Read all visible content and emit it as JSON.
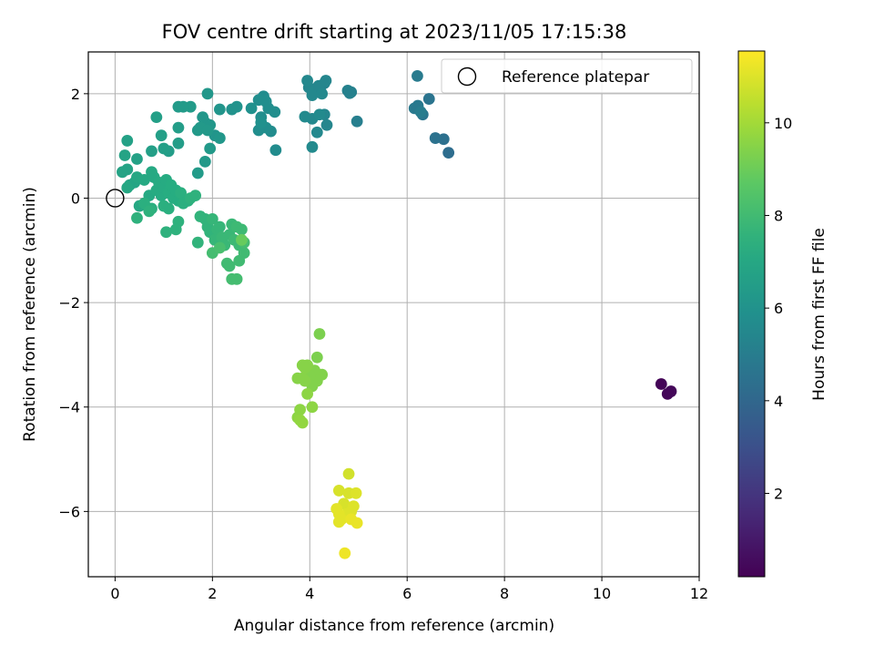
{
  "chart_data": {
    "type": "scatter",
    "title": "FOV centre drift starting at 2023/11/05 17:15:38",
    "xlabel": "Angular distance from reference (arcmin)",
    "ylabel": "Rotation from reference (arcmin)",
    "xlim": [
      -0.55,
      12
    ],
    "ylim": [
      -7.25,
      2.8
    ],
    "xticks": [
      0,
      2,
      4,
      6,
      8,
      10,
      12
    ],
    "yticks": [
      -6,
      -4,
      -2,
      0,
      2
    ],
    "grid": true,
    "legend": {
      "position": "top-right",
      "entries": [
        "Reference platepar"
      ]
    },
    "reference_point": {
      "x": 0,
      "y": 0,
      "label": "Reference platepar"
    },
    "colorbar": {
      "label": "Hours from first FF file",
      "colormap": "viridis",
      "range": [
        0.2,
        11.55
      ],
      "ticks": [
        2,
        4,
        6,
        8,
        10
      ]
    },
    "points": [
      [
        11.22,
        -3.56,
        0.3
      ],
      [
        11.35,
        -3.75,
        0.35
      ],
      [
        11.42,
        -3.7,
        0.4
      ],
      [
        6.85,
        0.87,
        4.3
      ],
      [
        6.75,
        1.13,
        4.4
      ],
      [
        6.58,
        1.15,
        4.5
      ],
      [
        6.45,
        1.9,
        4.6
      ],
      [
        6.32,
        1.6,
        4.7
      ],
      [
        6.22,
        1.77,
        4.8
      ],
      [
        6.15,
        1.72,
        4.8
      ],
      [
        6.21,
        2.34,
        4.9
      ],
      [
        6.28,
        1.65,
        5.0
      ],
      [
        4.97,
        1.47,
        5.1
      ],
      [
        4.82,
        2.01,
        5.2
      ],
      [
        4.78,
        2.06,
        5.2
      ],
      [
        4.85,
        2.03,
        5.2
      ],
      [
        4.35,
        1.4,
        5.4
      ],
      [
        4.3,
        1.6,
        5.4
      ],
      [
        4.15,
        1.26,
        5.5
      ],
      [
        4.05,
        1.52,
        5.5
      ],
      [
        3.98,
        2.12,
        5.4
      ],
      [
        4.1,
        2.05,
        5.5
      ],
      [
        4.22,
        2.05,
        5.3
      ],
      [
        4.3,
        2.2,
        5.3
      ],
      [
        3.95,
        2.25,
        5.5
      ],
      [
        4.18,
        2.15,
        5.4
      ],
      [
        4.05,
        1.97,
        5.5
      ],
      [
        3.9,
        1.56,
        5.6
      ],
      [
        4.05,
        0.98,
        5.6
      ],
      [
        4.2,
        1.6,
        5.6
      ],
      [
        4.25,
        2.0,
        5.5
      ],
      [
        4.33,
        2.25,
        5.4
      ],
      [
        3.3,
        0.92,
        5.7
      ],
      [
        3.2,
        1.28,
        5.7
      ],
      [
        3.1,
        1.35,
        5.8
      ],
      [
        3.0,
        1.55,
        5.8
      ],
      [
        2.95,
        1.3,
        5.8
      ],
      [
        3.15,
        1.72,
        5.8
      ],
      [
        3.28,
        1.65,
        5.8
      ],
      [
        3.05,
        1.95,
        5.7
      ],
      [
        2.95,
        1.88,
        5.8
      ],
      [
        2.8,
        1.72,
        5.9
      ],
      [
        3.1,
        1.85,
        5.8
      ],
      [
        3.0,
        1.45,
        5.9
      ],
      [
        2.5,
        1.75,
        6.0
      ],
      [
        2.4,
        1.7,
        6.0
      ],
      [
        2.15,
        1.7,
        6.1
      ],
      [
        2.05,
        1.2,
        6.1
      ],
      [
        2.15,
        1.15,
        6.2
      ],
      [
        1.95,
        1.4,
        6.2
      ],
      [
        1.85,
        1.45,
        6.2
      ],
      [
        1.9,
        2.0,
        6.2
      ],
      [
        1.8,
        1.55,
        6.2
      ],
      [
        1.7,
        1.3,
        6.3
      ],
      [
        1.75,
        1.35,
        6.3
      ],
      [
        1.9,
        1.3,
        6.3
      ],
      [
        1.95,
        0.95,
        6.3
      ],
      [
        1.85,
        0.7,
        6.3
      ],
      [
        1.7,
        0.48,
        6.4
      ],
      [
        1.55,
        1.75,
        6.4
      ],
      [
        1.4,
        1.75,
        6.4
      ],
      [
        1.3,
        1.75,
        6.4
      ],
      [
        1.3,
        1.35,
        6.5
      ],
      [
        1.3,
        1.05,
        6.5
      ],
      [
        1.1,
        0.9,
        6.5
      ],
      [
        1.0,
        0.95,
        6.6
      ],
      [
        0.95,
        1.2,
        6.6
      ],
      [
        0.85,
        1.55,
        6.6
      ],
      [
        0.75,
        0.9,
        6.6
      ],
      [
        0.45,
        0.75,
        6.7
      ],
      [
        0.25,
        1.1,
        6.7
      ],
      [
        0.2,
        0.82,
        6.8
      ],
      [
        0.25,
        0.55,
        6.8
      ],
      [
        0.15,
        0.5,
        6.8
      ],
      [
        0.3,
        0.25,
        6.9
      ],
      [
        0.4,
        0.3,
        6.9
      ],
      [
        0.25,
        0.2,
        7.0
      ],
      [
        0.45,
        0.4,
        7.0
      ],
      [
        0.5,
        -0.15,
        7.0
      ],
      [
        0.6,
        0.35,
        7.1
      ],
      [
        0.75,
        0.5,
        7.1
      ],
      [
        0.7,
        0.05,
        7.1
      ],
      [
        0.8,
        0.4,
        7.1
      ],
      [
        0.85,
        0.15,
        7.2
      ],
      [
        0.9,
        0.3,
        7.2
      ],
      [
        0.95,
        0.05,
        7.2
      ],
      [
        1.0,
        0.2,
        7.2
      ],
      [
        1.05,
        0.35,
        7.2
      ],
      [
        1.1,
        0.1,
        7.3
      ],
      [
        1.15,
        0.25,
        7.3
      ],
      [
        1.2,
        0.0,
        7.3
      ],
      [
        1.25,
        0.15,
        7.3
      ],
      [
        1.3,
        -0.05,
        7.3
      ],
      [
        1.35,
        0.1,
        7.4
      ],
      [
        1.4,
        -0.1,
        7.4
      ],
      [
        1.5,
        -0.05,
        7.4
      ],
      [
        1.0,
        -0.15,
        7.4
      ],
      [
        1.1,
        -0.2,
        7.4
      ],
      [
        0.75,
        -0.2,
        7.4
      ],
      [
        0.6,
        -0.1,
        7.4
      ],
      [
        0.45,
        -0.38,
        7.5
      ],
      [
        0.7,
        -0.25,
        7.5
      ],
      [
        1.3,
        -0.45,
        7.5
      ],
      [
        1.25,
        -0.6,
        7.5
      ],
      [
        1.05,
        -0.65,
        7.5
      ],
      [
        1.55,
        0.0,
        7.5
      ],
      [
        1.65,
        0.05,
        7.5
      ],
      [
        1.7,
        -0.85,
        7.6
      ],
      [
        1.75,
        -0.35,
        7.6
      ],
      [
        1.85,
        -0.4,
        7.6
      ],
      [
        1.9,
        -0.55,
        7.6
      ],
      [
        1.95,
        -0.65,
        7.6
      ],
      [
        2.0,
        -0.4,
        7.7
      ],
      [
        2.05,
        -0.8,
        7.7
      ],
      [
        2.1,
        -0.6,
        7.7
      ],
      [
        2.15,
        -0.55,
        7.7
      ],
      [
        2.2,
        -0.75,
        7.8
      ],
      [
        2.25,
        -0.9,
        7.8
      ],
      [
        2.35,
        -0.7,
        7.8
      ],
      [
        2.4,
        -0.5,
        7.8
      ],
      [
        2.45,
        -0.8,
        7.9
      ],
      [
        2.5,
        -0.55,
        7.9
      ],
      [
        2.55,
        -0.9,
        7.9
      ],
      [
        2.6,
        -0.6,
        7.9
      ],
      [
        2.65,
        -1.05,
        8.0
      ],
      [
        2.55,
        -1.2,
        8.0
      ],
      [
        2.35,
        -1.3,
        8.0
      ],
      [
        2.3,
        -1.25,
        8.0
      ],
      [
        2.4,
        -1.55,
        8.1
      ],
      [
        2.5,
        -1.55,
        8.1
      ],
      [
        2.65,
        -0.85,
        8.1
      ],
      [
        2.0,
        -1.05,
        8.1
      ],
      [
        2.15,
        -0.95,
        8.2
      ],
      [
        2.6,
        -0.8,
        8.9
      ],
      [
        4.2,
        -2.6,
        9.3
      ],
      [
        4.15,
        -3.05,
        9.3
      ],
      [
        4.25,
        -3.38,
        9.4
      ],
      [
        4.1,
        -3.3,
        9.4
      ],
      [
        4.15,
        -3.5,
        9.4
      ],
      [
        4.05,
        -3.6,
        9.4
      ],
      [
        4.0,
        -3.4,
        9.4
      ],
      [
        3.95,
        -3.2,
        9.5
      ],
      [
        3.9,
        -3.25,
        9.5
      ],
      [
        3.85,
        -3.45,
        9.5
      ],
      [
        3.75,
        -3.45,
        9.5
      ],
      [
        3.85,
        -3.2,
        9.5
      ],
      [
        3.9,
        -3.5,
        9.5
      ],
      [
        3.95,
        -3.75,
        9.6
      ],
      [
        4.05,
        -4.0,
        9.6
      ],
      [
        3.8,
        -4.05,
        9.6
      ],
      [
        3.75,
        -4.2,
        9.6
      ],
      [
        3.85,
        -4.3,
        9.7
      ],
      [
        3.8,
        -4.25,
        9.7
      ],
      [
        4.8,
        -5.28,
        10.8
      ],
      [
        4.6,
        -5.6,
        10.9
      ],
      [
        4.7,
        -5.85,
        10.9
      ],
      [
        4.8,
        -5.65,
        10.9
      ],
      [
        4.95,
        -5.65,
        11.0
      ],
      [
        4.9,
        -5.9,
        11.0
      ],
      [
        4.85,
        -6.0,
        11.0
      ],
      [
        4.75,
        -6.05,
        11.0
      ],
      [
        4.6,
        -6.05,
        11.1
      ],
      [
        4.55,
        -5.95,
        11.1
      ],
      [
        4.65,
        -6.15,
        11.1
      ],
      [
        4.6,
        -6.2,
        11.1
      ],
      [
        4.85,
        -6.15,
        11.2
      ],
      [
        4.97,
        -6.22,
        11.2
      ],
      [
        4.72,
        -6.8,
        11.3
      ]
    ]
  }
}
